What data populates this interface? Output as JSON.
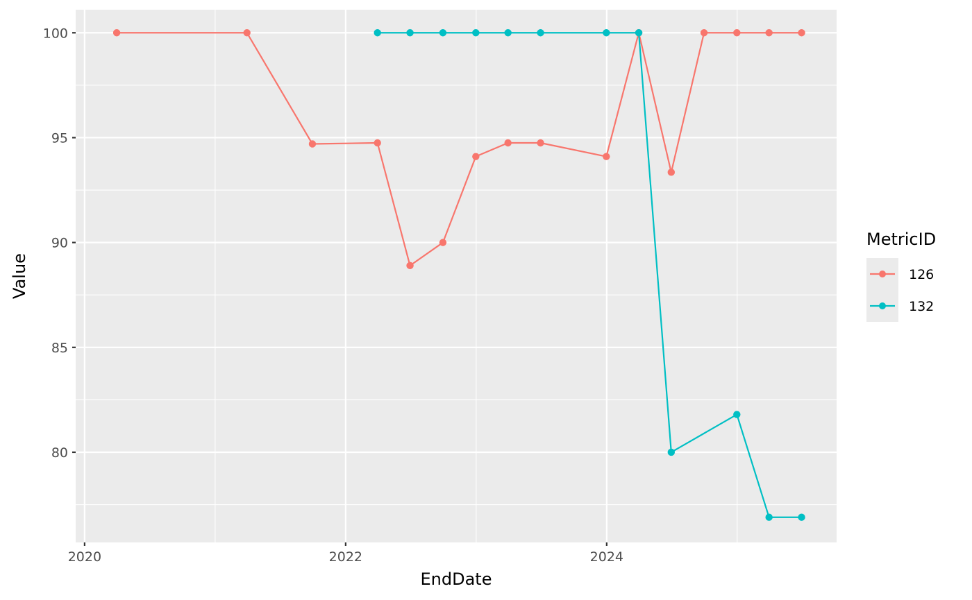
{
  "chart_data": {
    "type": "line",
    "xlabel": "EndDate",
    "ylabel": "Value",
    "x_ticks": [
      2020,
      2022,
      2024
    ],
    "y_ticks": [
      80,
      85,
      90,
      95,
      100
    ],
    "xlim": [
      "2019-12-07",
      "2025-10-06"
    ],
    "ylim": [
      75.7,
      101.1
    ],
    "grid": true,
    "legend": {
      "title": "MetricID",
      "placement": "right"
    },
    "series": [
      {
        "name": "126",
        "color": "#F8766D",
        "x": [
          "2020-03-31",
          "2021-03-31",
          "2021-09-30",
          "2022-03-31",
          "2022-06-30",
          "2022-09-30",
          "2022-12-31",
          "2023-03-31",
          "2023-06-30",
          "2023-12-31",
          "2024-03-31",
          "2024-06-30",
          "2024-09-30",
          "2024-12-31",
          "2025-03-31",
          "2025-06-30"
        ],
        "y": [
          100,
          100,
          94.7,
          94.75,
          88.9,
          90,
          94.1,
          94.75,
          94.75,
          94.1,
          100,
          93.35,
          100,
          100,
          100,
          100
        ]
      },
      {
        "name": "132",
        "color": "#00BFC4",
        "x": [
          "2022-03-31",
          "2022-06-30",
          "2022-09-30",
          "2022-12-31",
          "2023-03-31",
          "2023-06-30",
          "2023-12-31",
          "2024-03-31",
          "2024-06-30",
          "2024-12-31",
          "2025-03-31",
          "2025-06-30"
        ],
        "y": [
          100,
          100,
          100,
          100,
          100,
          100,
          100,
          100,
          80,
          81.8,
          76.9,
          76.9
        ]
      }
    ]
  }
}
